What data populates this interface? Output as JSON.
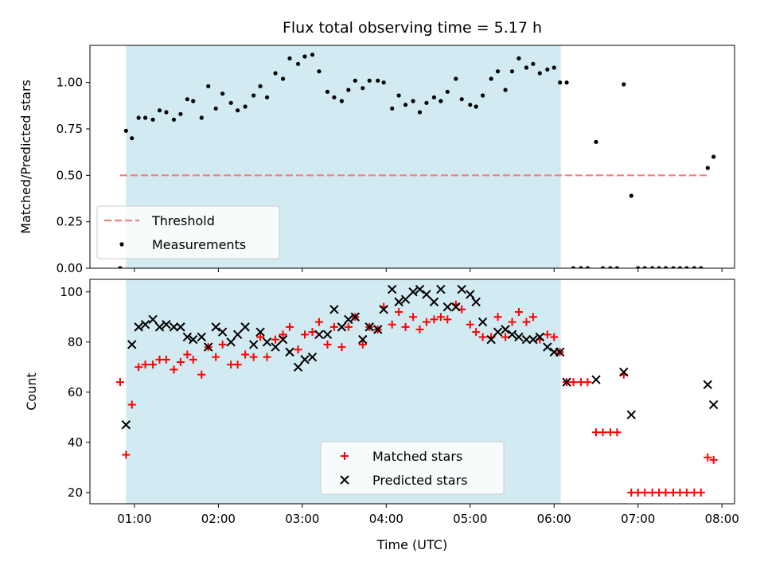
{
  "title": "Flux total observing time = 5.17 h",
  "x_axis_label": "Time (UTC)",
  "colors": {
    "shaded_region": "#add8e6",
    "threshold": "#f08080",
    "measurements": "#000000",
    "matched": "#ff0000",
    "predicted": "#000000"
  },
  "chart_data": [
    {
      "type": "scatter",
      "title": "Flux total observing time = 5.17 h",
      "ylabel": "Matched/Predicted stars",
      "xlabel": "",
      "x_unit": "hours (UTC)",
      "xlim": [
        0.47,
        8.15
      ],
      "ylim": [
        0.0,
        1.2
      ],
      "xticks": [
        {
          "v": 1,
          "label": "01:00"
        },
        {
          "v": 2,
          "label": "02:00"
        },
        {
          "v": 3,
          "label": "03:00"
        },
        {
          "v": 4,
          "label": "04:00"
        },
        {
          "v": 5,
          "label": "05:00"
        },
        {
          "v": 6,
          "label": "06:00"
        },
        {
          "v": 7,
          "label": "07:00"
        },
        {
          "v": 8,
          "label": "08:00"
        }
      ],
      "yticks": [
        {
          "v": 0.0,
          "label": "0.00"
        },
        {
          "v": 0.25,
          "label": "0.25"
        },
        {
          "v": 0.5,
          "label": "0.50"
        },
        {
          "v": 0.75,
          "label": "0.75"
        },
        {
          "v": 1.0,
          "label": "1.00"
        }
      ],
      "shaded_span": [
        0.9,
        6.08
      ],
      "legend_position": "lower-left",
      "threshold": {
        "name": "Threshold",
        "value": 0.5,
        "x_range": [
          0.83,
          7.83
        ]
      },
      "series": [
        {
          "name": "Measurements",
          "points": [
            [
              0.83,
              0.0
            ],
            [
              0.9,
              0.74
            ],
            [
              0.97,
              0.7
            ],
            [
              1.05,
              0.81
            ],
            [
              1.13,
              0.81
            ],
            [
              1.22,
              0.8
            ],
            [
              1.3,
              0.85
            ],
            [
              1.38,
              0.84
            ],
            [
              1.47,
              0.8
            ],
            [
              1.55,
              0.83
            ],
            [
              1.63,
              0.91
            ],
            [
              1.7,
              0.9
            ],
            [
              1.8,
              0.81
            ],
            [
              1.88,
              0.98
            ],
            [
              1.97,
              0.86
            ],
            [
              2.05,
              0.94
            ],
            [
              2.15,
              0.89
            ],
            [
              2.23,
              0.85
            ],
            [
              2.32,
              0.87
            ],
            [
              2.42,
              0.93
            ],
            [
              2.5,
              0.98
            ],
            [
              2.58,
              0.92
            ],
            [
              2.68,
              1.05
            ],
            [
              2.77,
              1.02
            ],
            [
              2.85,
              1.13
            ],
            [
              2.95,
              1.1
            ],
            [
              3.03,
              1.14
            ],
            [
              3.12,
              1.15
            ],
            [
              3.2,
              1.06
            ],
            [
              3.3,
              0.95
            ],
            [
              3.38,
              0.92
            ],
            [
              3.47,
              0.9
            ],
            [
              3.55,
              0.96
            ],
            [
              3.63,
              1.01
            ],
            [
              3.72,
              0.97
            ],
            [
              3.8,
              1.01
            ],
            [
              3.9,
              1.01
            ],
            [
              3.97,
              1.0
            ],
            [
              4.07,
              0.86
            ],
            [
              4.15,
              0.93
            ],
            [
              4.23,
              0.88
            ],
            [
              4.32,
              0.9
            ],
            [
              4.4,
              0.84
            ],
            [
              4.48,
              0.89
            ],
            [
              4.57,
              0.92
            ],
            [
              4.65,
              0.9
            ],
            [
              4.73,
              0.95
            ],
            [
              4.83,
              1.02
            ],
            [
              4.9,
              0.91
            ],
            [
              5.0,
              0.88
            ],
            [
              5.07,
              0.87
            ],
            [
              5.15,
              0.93
            ],
            [
              5.25,
              1.02
            ],
            [
              5.33,
              1.06
            ],
            [
              5.42,
              0.96
            ],
            [
              5.5,
              1.06
            ],
            [
              5.58,
              1.13
            ],
            [
              5.67,
              1.08
            ],
            [
              5.75,
              1.1
            ],
            [
              5.83,
              1.05
            ],
            [
              5.92,
              1.07
            ],
            [
              6.0,
              1.08
            ],
            [
              6.07,
              1.0
            ],
            [
              6.15,
              1.0
            ],
            [
              6.23,
              0.0
            ],
            [
              6.32,
              0.0
            ],
            [
              6.4,
              0.0
            ],
            [
              6.5,
              0.68
            ],
            [
              6.58,
              0.0
            ],
            [
              6.67,
              0.0
            ],
            [
              6.75,
              0.0
            ],
            [
              6.83,
              0.99
            ],
            [
              6.92,
              0.39
            ],
            [
              7.0,
              0.0
            ],
            [
              7.08,
              0.0
            ],
            [
              7.17,
              0.0
            ],
            [
              7.25,
              0.0
            ],
            [
              7.33,
              0.0
            ],
            [
              7.42,
              0.0
            ],
            [
              7.5,
              0.0
            ],
            [
              7.58,
              0.0
            ],
            [
              7.67,
              0.0
            ],
            [
              7.75,
              0.0
            ],
            [
              7.83,
              0.54
            ],
            [
              7.9,
              0.6
            ]
          ]
        }
      ]
    },
    {
      "type": "scatter",
      "title": "",
      "ylabel": "Count",
      "xlabel": "Time (UTC)",
      "x_unit": "hours (UTC)",
      "xlim": [
        0.47,
        8.15
      ],
      "ylim": [
        15.5,
        105
      ],
      "xticks": [
        {
          "v": 1,
          "label": "01:00"
        },
        {
          "v": 2,
          "label": "02:00"
        },
        {
          "v": 3,
          "label": "03:00"
        },
        {
          "v": 4,
          "label": "04:00"
        },
        {
          "v": 5,
          "label": "05:00"
        },
        {
          "v": 6,
          "label": "06:00"
        },
        {
          "v": 7,
          "label": "07:00"
        },
        {
          "v": 8,
          "label": "08:00"
        }
      ],
      "yticks": [
        {
          "v": 20,
          "label": "20"
        },
        {
          "v": 40,
          "label": "40"
        },
        {
          "v": 60,
          "label": "60"
        },
        {
          "v": 80,
          "label": "80"
        },
        {
          "v": 100,
          "label": "100"
        }
      ],
      "shaded_span": [
        0.9,
        6.08
      ],
      "legend_position": "lower-center",
      "series": [
        {
          "name": "Matched stars",
          "marker": "plus",
          "points": [
            [
              0.83,
              64
            ],
            [
              0.9,
              35
            ],
            [
              0.97,
              55
            ],
            [
              1.05,
              70
            ],
            [
              1.13,
              71
            ],
            [
              1.22,
              71
            ],
            [
              1.3,
              73
            ],
            [
              1.38,
              73
            ],
            [
              1.47,
              69
            ],
            [
              1.55,
              72
            ],
            [
              1.63,
              75
            ],
            [
              1.7,
              73
            ],
            [
              1.8,
              67
            ],
            [
              1.88,
              78
            ],
            [
              1.97,
              74
            ],
            [
              2.05,
              79
            ],
            [
              2.15,
              71
            ],
            [
              2.23,
              71
            ],
            [
              2.32,
              75
            ],
            [
              2.42,
              74
            ],
            [
              2.5,
              82
            ],
            [
              2.58,
              74
            ],
            [
              2.68,
              81
            ],
            [
              2.77,
              83
            ],
            [
              2.85,
              86
            ],
            [
              2.95,
              77
            ],
            [
              3.03,
              83
            ],
            [
              3.12,
              84
            ],
            [
              3.2,
              88
            ],
            [
              3.3,
              79
            ],
            [
              3.38,
              86
            ],
            [
              3.47,
              78
            ],
            [
              3.55,
              86
            ],
            [
              3.63,
              90
            ],
            [
              3.72,
              79
            ],
            [
              3.8,
              86
            ],
            [
              3.9,
              85
            ],
            [
              3.97,
              94
            ],
            [
              4.07,
              87
            ],
            [
              4.15,
              92
            ],
            [
              4.23,
              86
            ],
            [
              4.32,
              90
            ],
            [
              4.4,
              85
            ],
            [
              4.48,
              88
            ],
            [
              4.57,
              89
            ],
            [
              4.65,
              90
            ],
            [
              4.73,
              89
            ],
            [
              4.83,
              95
            ],
            [
              4.9,
              93
            ],
            [
              5.0,
              87
            ],
            [
              5.07,
              84
            ],
            [
              5.15,
              82
            ],
            [
              5.25,
              82
            ],
            [
              5.33,
              90
            ],
            [
              5.42,
              82
            ],
            [
              5.5,
              88
            ],
            [
              5.58,
              92
            ],
            [
              5.67,
              88
            ],
            [
              5.75,
              90
            ],
            [
              5.83,
              81
            ],
            [
              5.92,
              83
            ],
            [
              6.0,
              82
            ],
            [
              6.07,
              76
            ],
            [
              6.15,
              64
            ],
            [
              6.23,
              64
            ],
            [
              6.32,
              64
            ],
            [
              6.4,
              64
            ],
            [
              6.5,
              44
            ],
            [
              6.58,
              44
            ],
            [
              6.67,
              44
            ],
            [
              6.75,
              44
            ],
            [
              6.83,
              67
            ],
            [
              6.92,
              20
            ],
            [
              7.0,
              20
            ],
            [
              7.08,
              20
            ],
            [
              7.17,
              20
            ],
            [
              7.25,
              20
            ],
            [
              7.33,
              20
            ],
            [
              7.42,
              20
            ],
            [
              7.5,
              20
            ],
            [
              7.58,
              20
            ],
            [
              7.67,
              20
            ],
            [
              7.75,
              20
            ],
            [
              7.83,
              34
            ],
            [
              7.9,
              33
            ]
          ]
        },
        {
          "name": "Predicted stars",
          "marker": "x",
          "points": [
            [
              0.9,
              47
            ],
            [
              0.97,
              79
            ],
            [
              1.05,
              86
            ],
            [
              1.13,
              87
            ],
            [
              1.22,
              89
            ],
            [
              1.3,
              86
            ],
            [
              1.38,
              87
            ],
            [
              1.47,
              86
            ],
            [
              1.55,
              86
            ],
            [
              1.63,
              82
            ],
            [
              1.7,
              81
            ],
            [
              1.8,
              82
            ],
            [
              1.88,
              78
            ],
            [
              1.97,
              86
            ],
            [
              2.05,
              84
            ],
            [
              2.15,
              80
            ],
            [
              2.23,
              83
            ],
            [
              2.32,
              86
            ],
            [
              2.42,
              79
            ],
            [
              2.5,
              84
            ],
            [
              2.58,
              80
            ],
            [
              2.68,
              78
            ],
            [
              2.77,
              81
            ],
            [
              2.85,
              76
            ],
            [
              2.95,
              70
            ],
            [
              3.03,
              73
            ],
            [
              3.12,
              74
            ],
            [
              3.2,
              83
            ],
            [
              3.3,
              83
            ],
            [
              3.38,
              93
            ],
            [
              3.47,
              86
            ],
            [
              3.55,
              89
            ],
            [
              3.63,
              90
            ],
            [
              3.72,
              81
            ],
            [
              3.8,
              86
            ],
            [
              3.9,
              85
            ],
            [
              3.97,
              93
            ],
            [
              4.07,
              101
            ],
            [
              4.15,
              96
            ],
            [
              4.23,
              97
            ],
            [
              4.32,
              100
            ],
            [
              4.4,
              101
            ],
            [
              4.48,
              99
            ],
            [
              4.57,
              96
            ],
            [
              4.65,
              101
            ],
            [
              4.73,
              94
            ],
            [
              4.83,
              94
            ],
            [
              4.9,
              101
            ],
            [
              5.0,
              99
            ],
            [
              5.07,
              96
            ],
            [
              5.15,
              88
            ],
            [
              5.25,
              81
            ],
            [
              5.33,
              84
            ],
            [
              5.42,
              85
            ],
            [
              5.5,
              83
            ],
            [
              5.58,
              82
            ],
            [
              5.67,
              81
            ],
            [
              5.75,
              81
            ],
            [
              5.83,
              82
            ],
            [
              5.92,
              78
            ],
            [
              6.0,
              76
            ],
            [
              6.07,
              76
            ],
            [
              6.15,
              64
            ],
            [
              6.5,
              65
            ],
            [
              6.83,
              68
            ],
            [
              6.92,
              51
            ],
            [
              7.83,
              63
            ],
            [
              7.9,
              55
            ]
          ]
        }
      ]
    }
  ]
}
